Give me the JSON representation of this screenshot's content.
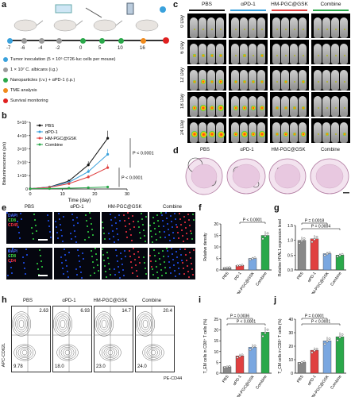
{
  "panels": {
    "a": "a",
    "b": "b",
    "c": "c",
    "d": "d",
    "e": "e",
    "f": "f",
    "g": "g",
    "h": "h",
    "i": "i",
    "j": "j"
  },
  "timeline": {
    "days": [
      "-7",
      "-6",
      "-4",
      "-2",
      "0",
      "5",
      "10",
      "16"
    ],
    "legend": [
      {
        "text": "Tumor inoculation (5 × 10⁶ CT26-luc cells per mouse)",
        "color": "#3aa1dc"
      },
      {
        "text": "1 × 10⁷ C. albicans (i.g.)",
        "color": "#9a9a9a"
      },
      {
        "text": "Nanoparticles (i.v.) + αPD-1 (i.p.)",
        "color": "#2aa84a"
      },
      {
        "text": "TME analysis",
        "color": "#f08a1c"
      },
      {
        "text": "Survival monitoring",
        "color": "#e02020"
      }
    ]
  },
  "groups": [
    "PBS",
    "αPD-1",
    "HM-PGC@GSK",
    "Combine"
  ],
  "group_colors": [
    "#111111",
    "#3aa1dc",
    "#e04040",
    "#2aa84a"
  ],
  "imaging_days": [
    "0 Day",
    "6 Day",
    "12 Day",
    "18 Day",
    "24 Day"
  ],
  "he_groups": [
    "PBS",
    "αPD-1",
    "HM-PGC@GSK",
    "Combine"
  ],
  "fluor": {
    "row1_labels": [
      "DAPI",
      "CD8",
      "CD45"
    ],
    "row2_labels": [
      "DAPI",
      "CD8",
      "CD4"
    ],
    "row1_label_colors": [
      "#4a6cff",
      "#44dd44",
      "#ff3344"
    ],
    "row2_label_colors": [
      "#4a6cff",
      "#44dd44",
      "#ff3344"
    ]
  },
  "flow": {
    "y_label": "APC-CD62L",
    "x_label": "PE-CD44",
    "upper": [
      "2.63",
      "6.93",
      "14.7",
      "20.4"
    ],
    "lower": [
      "9.78",
      "18.0",
      "23.0",
      "24.0"
    ]
  },
  "chart_data": [
    {
      "type": "line",
      "panel": "b",
      "xlabel": "Time (day)",
      "ylabel": "Bioluminescence (p/s)",
      "x": [
        0,
        6,
        12,
        18,
        24
      ],
      "xticks": [
        "0",
        "10",
        "20",
        "30"
      ],
      "yticks": [
        "0",
        "1×10⁷",
        "2×10⁷",
        "3×10⁷",
        "4×10⁷",
        "5×10⁷"
      ],
      "xlim": [
        0,
        30
      ],
      "ylim": [
        0,
        50000000
      ],
      "series": [
        {
          "name": "PBS",
          "values": [
            200000,
            1500000,
            6000000,
            18000000,
            38000000
          ]
        },
        {
          "name": "αPD-1",
          "values": [
            200000,
            1400000,
            5000000,
            13000000,
            26000000
          ]
        },
        {
          "name": "HM-PGC@GSK",
          "values": [
            200000,
            1200000,
            4000000,
            9000000,
            16000000
          ]
        },
        {
          "name": "Combine",
          "values": [
            200000,
            300000,
            600000,
            1000000,
            1500000
          ]
        }
      ],
      "annotations": [
        "P < 0.0001",
        "P < 0.0001"
      ]
    },
    {
      "type": "bar",
      "panel": "f",
      "ylabel": "Relative density",
      "categories": [
        "PBS",
        "PD-1",
        "HM-PGC@GSK",
        "Combine"
      ],
      "values": [
        1,
        2,
        5,
        15
      ],
      "yticks": [
        "0",
        "5",
        "10",
        "15",
        "20"
      ],
      "ylim": [
        0,
        20
      ],
      "annotations": [
        "P < 0.0001"
      ]
    },
    {
      "type": "bar",
      "panel": "g",
      "ylabel": "Relative HYAL1 expression level",
      "categories": [
        "PBS",
        "αPD-1",
        "HM-PGC@GSK",
        "Combine"
      ],
      "values": [
        1.0,
        1.05,
        0.55,
        0.5
      ],
      "yticks": [
        "0.0",
        "0.5",
        "1.0",
        "1.5"
      ],
      "ylim": [
        0,
        1.5
      ],
      "annotations": [
        "P = 0.0004",
        "P = 0.0018"
      ]
    },
    {
      "type": "bar",
      "panel": "i",
      "ylabel": "T_EM cells in CD8⁺ T cells (%)",
      "categories": [
        "PBS",
        "αPD-1",
        "HM-PGC@GSK",
        "Combine"
      ],
      "values": [
        3,
        8,
        12,
        19
      ],
      "yticks": [
        "0",
        "5",
        "10",
        "15",
        "20",
        "25"
      ],
      "ylim": [
        0,
        25
      ],
      "annotations": [
        "P < 0.0001",
        "P = 0.0036"
      ]
    },
    {
      "type": "bar",
      "panel": "j",
      "ylabel": "T_CM cells in CD8⁺ T cells (%)",
      "categories": [
        "PBS",
        "αPD-1",
        "HM-PGC@GSK",
        "Combine"
      ],
      "values": [
        8,
        17,
        24,
        27
      ],
      "yticks": [
        "0",
        "10",
        "20",
        "30",
        "40"
      ],
      "ylim": [
        0,
        40
      ],
      "annotations": [
        "P < 0.0001",
        "P = 0.0001"
      ]
    }
  ]
}
